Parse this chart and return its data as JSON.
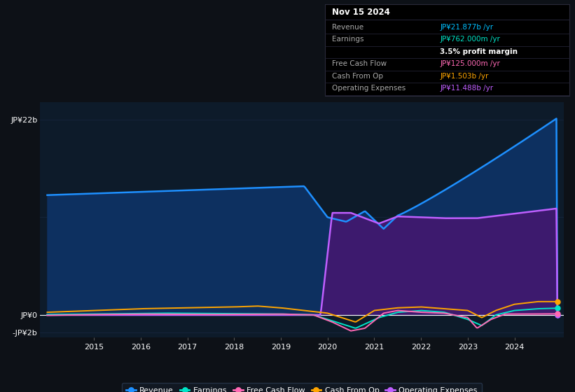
{
  "background_color": "#0d1117",
  "plot_bg_color": "#0d1b2a",
  "title_box_date": "Nov 15 2024",
  "info_labels": [
    "Revenue",
    "Earnings",
    "",
    "Free Cash Flow",
    "Cash From Op",
    "Operating Expenses"
  ],
  "info_values": [
    "JP¥21.877b /yr",
    "JP¥762.000m /yr",
    "3.5% profit margin",
    "JP¥125.000m /yr",
    "JP¥1.503b /yr",
    "JP¥11.488b /yr"
  ],
  "info_colors": [
    "#00bfff",
    "#00e5c8",
    "#ffffff",
    "#ff69b4",
    "#ffa500",
    "#bf5fff"
  ],
  "y_label_top": "JP¥22b",
  "y_label_zero": "JP¥0",
  "y_label_neg": "-JP¥2b",
  "ylim_min": -2500000000.0,
  "ylim_max": 24000000000.0,
  "x_ticks": [
    2015,
    2016,
    2017,
    2018,
    2019,
    2020,
    2021,
    2022,
    2023,
    2024
  ],
  "grid_color": "#1e3050",
  "grid_alpha": 0.5,
  "revenue_color": "#1e90ff",
  "revenue_fill": "#0d3060",
  "earnings_color": "#00e5c8",
  "fcf_color": "#ff69b4",
  "cashop_color": "#ffa500",
  "opex_color": "#bf5fff",
  "opex_fill": "#3d1a6e",
  "legend_bg": "#131a26",
  "legend_border": "#2a3a50",
  "legend_labels": [
    "Revenue",
    "Earnings",
    "Free Cash Flow",
    "Cash From Op",
    "Operating Expenses"
  ],
  "legend_colors": [
    "#1e90ff",
    "#00e5c8",
    "#ff69b4",
    "#ffa500",
    "#bf5fff"
  ]
}
